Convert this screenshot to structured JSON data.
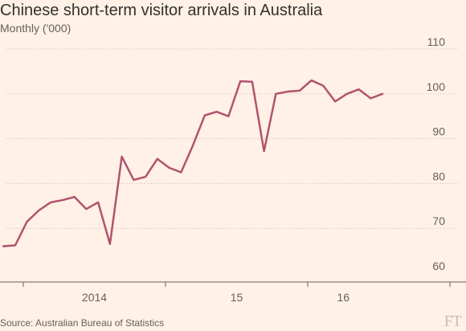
{
  "header": {
    "title": "Chinese short-term visitor arrivals in Australia",
    "subtitle": "Monthly ('000)"
  },
  "footer": {
    "source": "Source: Australian Bureau of Statistics",
    "logo": "FT"
  },
  "colors": {
    "line": "#b1536e",
    "grid": "#c9bfb7",
    "axis": "#66605c",
    "background": "#fff1e5"
  },
  "chart_data": {
    "type": "line",
    "title": "Chinese short-term visitor arrivals in Australia",
    "subtitle": "Monthly ('000)",
    "xlabel": "",
    "ylabel": "",
    "ylim": [
      60,
      110
    ],
    "yticks": [
      60,
      70,
      80,
      90,
      100,
      110
    ],
    "y_axis_position": "right",
    "grid": "horizontal dotted",
    "x_tick_labels": [
      "2014",
      "15",
      "16"
    ],
    "x_range": [
      "2013-09",
      "2016-06"
    ],
    "series": [
      {
        "name": "",
        "x": [
          "2013-10",
          "2013-11",
          "2013-12",
          "2014-01",
          "2014-02",
          "2014-03",
          "2014-04",
          "2014-05",
          "2014-06",
          "2014-07",
          "2014-08",
          "2014-09",
          "2014-10",
          "2014-11",
          "2014-12",
          "2015-01",
          "2015-02",
          "2015-03",
          "2015-04",
          "2015-05",
          "2015-06",
          "2015-07",
          "2015-08",
          "2015-09",
          "2015-10",
          "2015-11",
          "2015-12",
          "2016-01",
          "2016-02",
          "2016-03",
          "2016-04",
          "2016-05",
          "2016-06"
        ],
        "values": [
          66.0,
          66.2,
          71.5,
          74.0,
          75.8,
          76.3,
          77.0,
          74.3,
          75.8,
          66.5,
          86.0,
          80.8,
          81.5,
          85.5,
          83.5,
          82.5,
          88.5,
          95.2,
          96.0,
          95.0,
          102.8,
          102.7,
          87.2,
          100.0,
          100.5,
          100.7,
          103.0,
          101.8,
          98.3,
          100.0,
          101.0,
          99.0,
          100.0
        ]
      }
    ]
  }
}
